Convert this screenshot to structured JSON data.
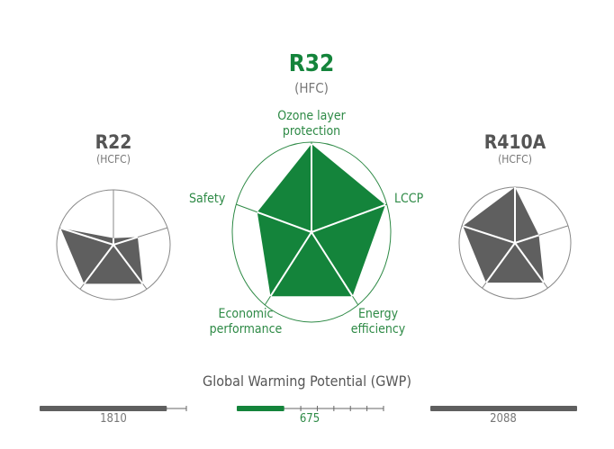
{
  "colors": {
    "green": "#14843b",
    "gray": "#5f5f5f",
    "label_green": "#2e8a46"
  },
  "axes": [
    "Ozone layer protection",
    "LCCP",
    "Energy efficiency",
    "Economic performance",
    "Safety"
  ],
  "axis_labels": {
    "ozone_1": "Ozone layer",
    "ozone_2": "protection",
    "lccp": "LCCP",
    "energy_1": "Energy",
    "energy_2": "efficiency",
    "economic_1": "Economic",
    "economic_2": "performance",
    "safety": "Safety"
  },
  "refrigerants": [
    {
      "name": "R22",
      "type": "(HCFC)",
      "radar": [
        0.12,
        0.45,
        0.88,
        0.88,
        0.98
      ],
      "gwp": "1810",
      "gwp_value": 1810
    },
    {
      "name": "R32",
      "type": "(HFC)",
      "radar": [
        0.98,
        0.98,
        0.88,
        0.88,
        0.72
      ],
      "gwp": "675",
      "gwp_value": 675
    },
    {
      "name": "R410A",
      "type": "(HCFC)",
      "radar": [
        1.0,
        0.45,
        0.88,
        0.88,
        0.98
      ],
      "gwp": "2088",
      "gwp_value": 2088
    }
  ],
  "gwp_title": "Global Warming Potential (GWP)",
  "gwp_max": 2088
}
